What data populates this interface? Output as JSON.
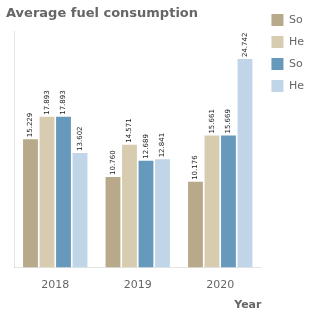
{
  "chart_data": {
    "type": "bar",
    "title": "Average fuel consumption",
    "xlabel": "Year",
    "categories": [
      "2018",
      "2019",
      "2020"
    ],
    "series": [
      {
        "name": "So",
        "color": "#b8a98a",
        "values": [
          15.229,
          10.76,
          10.176
        ],
        "value_labels": [
          "15.229",
          "10.760",
          "10.176"
        ]
      },
      {
        "name": "He",
        "color": "#d8ccb0",
        "values": [
          17.893,
          14.571,
          15.661
        ],
        "value_labels": [
          "17.893",
          "14.571",
          "15.661"
        ]
      },
      {
        "name": "So",
        "color": "#6699bb",
        "values": [
          17.893,
          12.689,
          15.669
        ],
        "value_labels": [
          "17.893",
          "12.689",
          "15.669"
        ]
      },
      {
        "name": "He",
        "color": "#c0d5e8",
        "values": [
          13.602,
          12.841,
          24.742
        ],
        "value_labels": [
          "13.602",
          "12.841",
          "24.742"
        ]
      }
    ],
    "ylim": [
      0,
      28
    ],
    "grid": false,
    "legend": "right",
    "data_labels": true,
    "tick_labels": "x"
  }
}
